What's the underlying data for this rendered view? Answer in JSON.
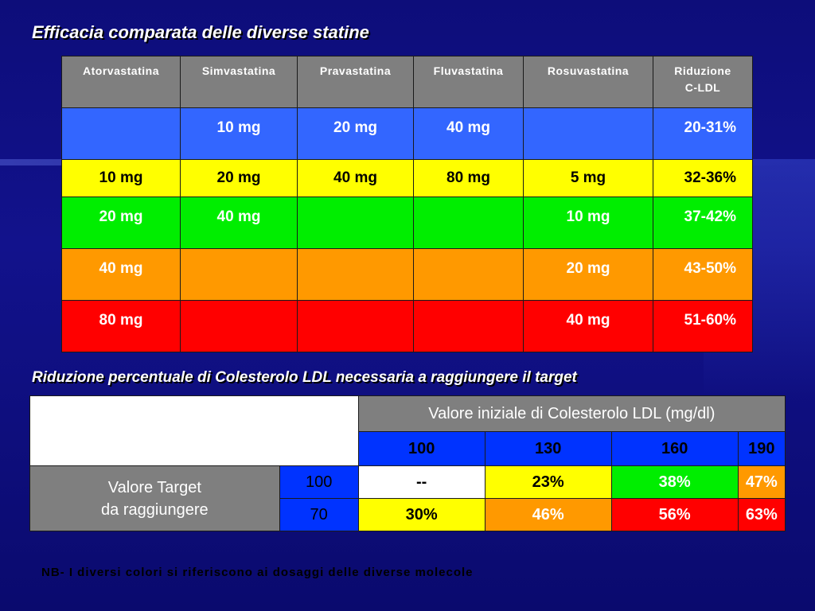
{
  "title": "Efficacia comparata delle diverse statine",
  "statin_table": {
    "headers": [
      "Atorvastatina",
      "Simvastatina",
      "Pravastatina",
      "Fluvastatina",
      "Rosuvastatina",
      "Riduzione\nC-LDL"
    ],
    "header_last_line1": "Riduzione",
    "header_last_line2": "C-LDL",
    "rows": [
      {
        "color": "#3366ff",
        "cells": [
          "",
          "10 mg",
          "20 mg",
          "40 mg",
          "",
          "20-31%"
        ]
      },
      {
        "color": "#ffff00",
        "cells": [
          "10 mg",
          "20 mg",
          "40 mg",
          "80 mg",
          "5 mg",
          "32-36%"
        ]
      },
      {
        "color": "#00ee00",
        "cells": [
          "20 mg",
          "40 mg",
          "",
          "",
          "10 mg",
          "37-42%"
        ]
      },
      {
        "color": "#ff9900",
        "cells": [
          "40 mg",
          "",
          "",
          "",
          "20 mg",
          "43-50%"
        ]
      },
      {
        "color": "#ff0000",
        "cells": [
          "80 mg",
          "",
          "",
          "",
          "40 mg",
          "51-60%"
        ]
      }
    ]
  },
  "subtitle": "Riduzione percentuale di Colesterolo LDL necessaria a raggiungere il target",
  "target_table": {
    "header": "Valore iniziale di Colesterolo LDL (mg/dl)",
    "initial_values": [
      "100",
      "130",
      "160",
      "190"
    ],
    "row_label_line1": "Valore Target",
    "row_label_line2": "da raggiungere",
    "rows": [
      {
        "target": "100",
        "values": [
          "--",
          "23%",
          "38%",
          "47%"
        ]
      },
      {
        "target": "70",
        "values": [
          "30%",
          "46%",
          "56%",
          "63%"
        ]
      }
    ]
  },
  "note": "NB- I diversi colori si riferiscono ai dosaggi delle diverse molecole"
}
